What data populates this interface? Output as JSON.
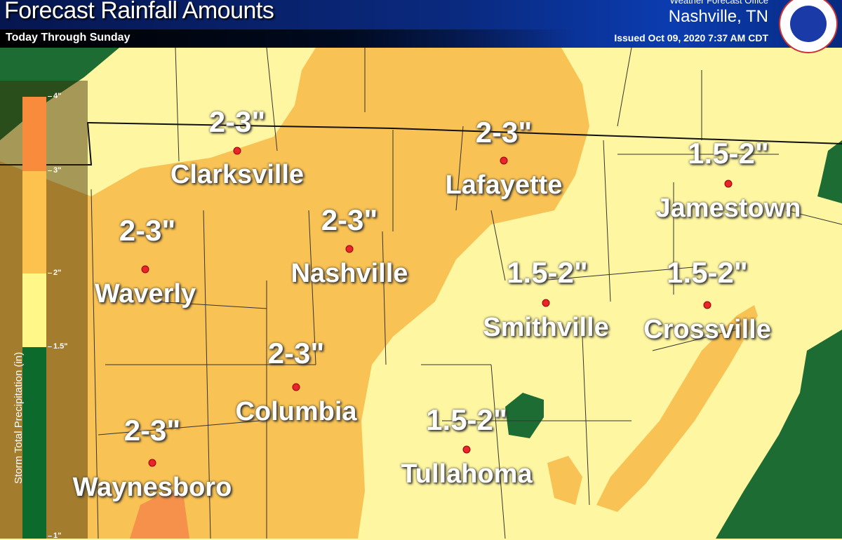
{
  "header": {
    "title": "Forecast Rainfall Amounts",
    "subtitle": "Today Through Sunday",
    "office": "Weather Forecast Office",
    "office_city": "Nashville, TN",
    "issued": "Issued Oct 09, 2020 7:37 AM CDT",
    "logo": "NWS"
  },
  "legend": {
    "title": "Storm Total Precipitation (in)",
    "ticks": [
      "4\"",
      "3\"",
      "2\"",
      "1.5\"",
      "1\""
    ],
    "bins": [
      {
        "range": "3-4\"",
        "color": "#f98b3c"
      },
      {
        "range": "2-3\"",
        "color": "#fdc24e"
      },
      {
        "range": "1.5-2\"",
        "color": "#fff787"
      },
      {
        "range": "1-1.5\"",
        "color": "#0b6a2c"
      }
    ]
  },
  "colors": {
    "light_yellow": "#fef6a0",
    "orange": "#f8c254",
    "dark_orange": "#f5914a",
    "green": "#1d6c33"
  },
  "locations": [
    {
      "name": "Clarksville",
      "amount": "2-3\""
    },
    {
      "name": "Lafayette",
      "amount": "2-3\""
    },
    {
      "name": "Jamestown",
      "amount": "1.5-2\""
    },
    {
      "name": "Waverly",
      "amount": "2-3\""
    },
    {
      "name": "Nashville",
      "amount": "2-3\""
    },
    {
      "name": "Smithville",
      "amount": "1.5-2\""
    },
    {
      "name": "Crossville",
      "amount": "1.5-2\""
    },
    {
      "name": "Columbia",
      "amount": "2-3\""
    },
    {
      "name": "Tullahoma",
      "amount": "1.5-2\""
    },
    {
      "name": "Waynesboro",
      "amount": "2-3\""
    }
  ]
}
